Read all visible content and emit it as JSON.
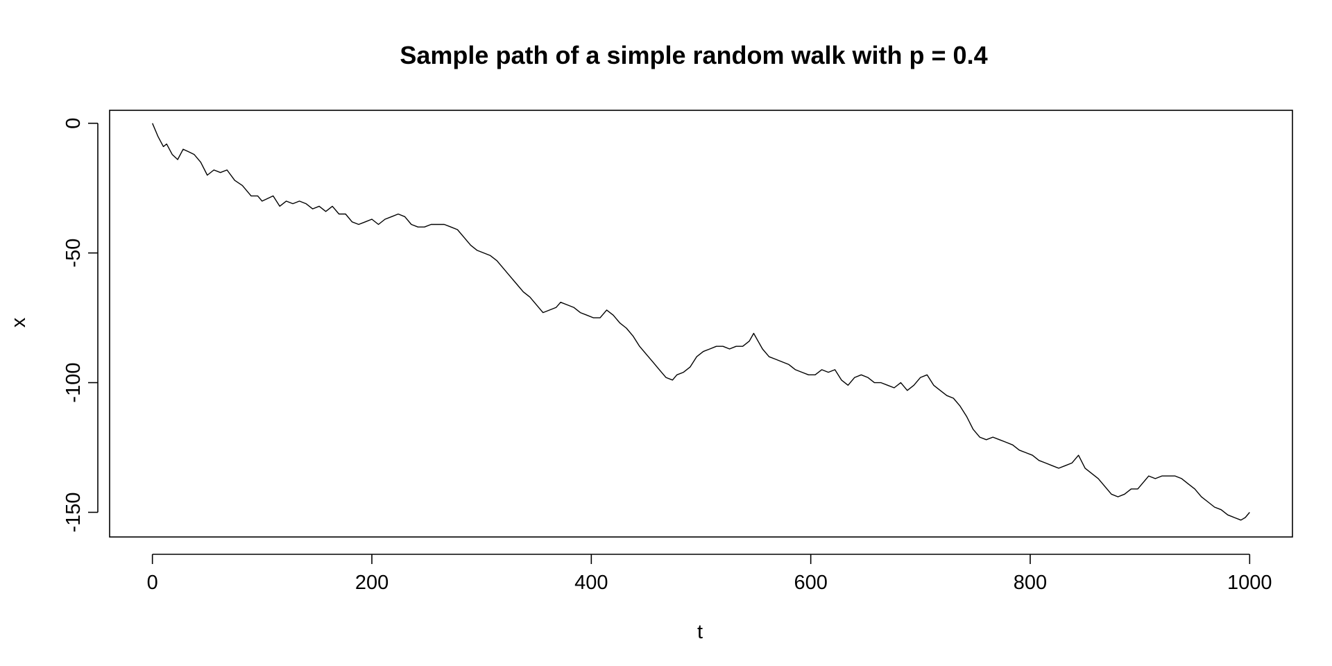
{
  "chart_data": {
    "type": "line",
    "title": "Sample path of a simple random walk with p = 0.4",
    "xlabel": "t",
    "ylabel": "x",
    "xlim": [
      -39,
      1039
    ],
    "ylim": [
      -159.5,
      5
    ],
    "x_ticks": [
      0,
      200,
      400,
      600,
      800,
      1000
    ],
    "x_tick_labels": [
      "0",
      "200",
      "400",
      "600",
      "800",
      "1000"
    ],
    "y_ticks": [
      0,
      -50,
      -100,
      -150
    ],
    "y_tick_labels": [
      "0",
      "-50",
      "-100",
      "-150"
    ],
    "grid": false,
    "legend": "none",
    "line_color": "#000000",
    "series": [
      {
        "points": [
          [
            0,
            0
          ],
          [
            5,
            -5
          ],
          [
            10,
            -9
          ],
          [
            13,
            -8
          ],
          [
            18,
            -12
          ],
          [
            23,
            -14
          ],
          [
            28,
            -10
          ],
          [
            33,
            -11
          ],
          [
            38,
            -12
          ],
          [
            44,
            -15
          ],
          [
            50,
            -20
          ],
          [
            56,
            -18
          ],
          [
            62,
            -19
          ],
          [
            68,
            -18
          ],
          [
            75,
            -22
          ],
          [
            82,
            -24
          ],
          [
            90,
            -28
          ],
          [
            96,
            -28
          ],
          [
            100,
            -30
          ],
          [
            105,
            -29
          ],
          [
            110,
            -28
          ],
          [
            116,
            -32
          ],
          [
            122,
            -30
          ],
          [
            128,
            -31
          ],
          [
            134,
            -30
          ],
          [
            140,
            -31
          ],
          [
            146,
            -33
          ],
          [
            152,
            -32
          ],
          [
            158,
            -34
          ],
          [
            164,
            -32
          ],
          [
            170,
            -35
          ],
          [
            176,
            -35
          ],
          [
            182,
            -38
          ],
          [
            188,
            -39
          ],
          [
            194,
            -38
          ],
          [
            200,
            -37
          ],
          [
            206,
            -39
          ],
          [
            212,
            -37
          ],
          [
            218,
            -36
          ],
          [
            224,
            -35
          ],
          [
            230,
            -36
          ],
          [
            236,
            -39
          ],
          [
            242,
            -40
          ],
          [
            248,
            -40
          ],
          [
            254,
            -39
          ],
          [
            260,
            -39
          ],
          [
            266,
            -39
          ],
          [
            272,
            -40
          ],
          [
            278,
            -41
          ],
          [
            284,
            -44
          ],
          [
            290,
            -47
          ],
          [
            296,
            -49
          ],
          [
            302,
            -50
          ],
          [
            308,
            -51
          ],
          [
            314,
            -53
          ],
          [
            320,
            -56
          ],
          [
            326,
            -59
          ],
          [
            332,
            -62
          ],
          [
            338,
            -65
          ],
          [
            344,
            -67
          ],
          [
            350,
            -70
          ],
          [
            356,
            -73
          ],
          [
            362,
            -72
          ],
          [
            368,
            -71
          ],
          [
            372,
            -69
          ],
          [
            378,
            -70
          ],
          [
            384,
            -71
          ],
          [
            390,
            -73
          ],
          [
            396,
            -74
          ],
          [
            402,
            -75
          ],
          [
            408,
            -75
          ],
          [
            414,
            -72
          ],
          [
            420,
            -74
          ],
          [
            426,
            -77
          ],
          [
            432,
            -79
          ],
          [
            438,
            -82
          ],
          [
            444,
            -86
          ],
          [
            450,
            -89
          ],
          [
            456,
            -92
          ],
          [
            462,
            -95
          ],
          [
            468,
            -98
          ],
          [
            474,
            -99
          ],
          [
            478,
            -97
          ],
          [
            484,
            -96
          ],
          [
            490,
            -94
          ],
          [
            496,
            -90
          ],
          [
            502,
            -88
          ],
          [
            508,
            -87
          ],
          [
            514,
            -86
          ],
          [
            520,
            -86
          ],
          [
            526,
            -87
          ],
          [
            532,
            -86
          ],
          [
            538,
            -86
          ],
          [
            544,
            -84
          ],
          [
            548,
            -81
          ],
          [
            552,
            -84
          ],
          [
            556,
            -87
          ],
          [
            562,
            -90
          ],
          [
            568,
            -91
          ],
          [
            574,
            -92
          ],
          [
            580,
            -93
          ],
          [
            586,
            -95
          ],
          [
            592,
            -96
          ],
          [
            598,
            -97
          ],
          [
            604,
            -97
          ],
          [
            610,
            -95
          ],
          [
            616,
            -96
          ],
          [
            622,
            -95
          ],
          [
            628,
            -99
          ],
          [
            634,
            -101
          ],
          [
            640,
            -98
          ],
          [
            646,
            -97
          ],
          [
            652,
            -98
          ],
          [
            658,
            -100
          ],
          [
            664,
            -100
          ],
          [
            670,
            -101
          ],
          [
            676,
            -102
          ],
          [
            682,
            -100
          ],
          [
            688,
            -103
          ],
          [
            694,
            -101
          ],
          [
            700,
            -98
          ],
          [
            706,
            -97
          ],
          [
            712,
            -101
          ],
          [
            718,
            -103
          ],
          [
            724,
            -105
          ],
          [
            730,
            -106
          ],
          [
            736,
            -109
          ],
          [
            742,
            -113
          ],
          [
            748,
            -118
          ],
          [
            754,
            -121
          ],
          [
            760,
            -122
          ],
          [
            766,
            -121
          ],
          [
            772,
            -122
          ],
          [
            778,
            -123
          ],
          [
            784,
            -124
          ],
          [
            790,
            -126
          ],
          [
            796,
            -127
          ],
          [
            802,
            -128
          ],
          [
            808,
            -130
          ],
          [
            814,
            -131
          ],
          [
            820,
            -132
          ],
          [
            826,
            -133
          ],
          [
            832,
            -132
          ],
          [
            838,
            -131
          ],
          [
            844,
            -128
          ],
          [
            850,
            -133
          ],
          [
            856,
            -135
          ],
          [
            862,
            -137
          ],
          [
            868,
            -140
          ],
          [
            874,
            -143
          ],
          [
            880,
            -144
          ],
          [
            886,
            -143
          ],
          [
            892,
            -141
          ],
          [
            898,
            -141
          ],
          [
            904,
            -138
          ],
          [
            908,
            -136
          ],
          [
            914,
            -137
          ],
          [
            920,
            -136
          ],
          [
            926,
            -136
          ],
          [
            932,
            -136
          ],
          [
            938,
            -137
          ],
          [
            944,
            -139
          ],
          [
            950,
            -141
          ],
          [
            956,
            -144
          ],
          [
            962,
            -146
          ],
          [
            968,
            -148
          ],
          [
            974,
            -149
          ],
          [
            980,
            -151
          ],
          [
            986,
            -152
          ],
          [
            992,
            -153
          ],
          [
            996,
            -152
          ],
          [
            1000,
            -150
          ]
        ]
      }
    ]
  }
}
